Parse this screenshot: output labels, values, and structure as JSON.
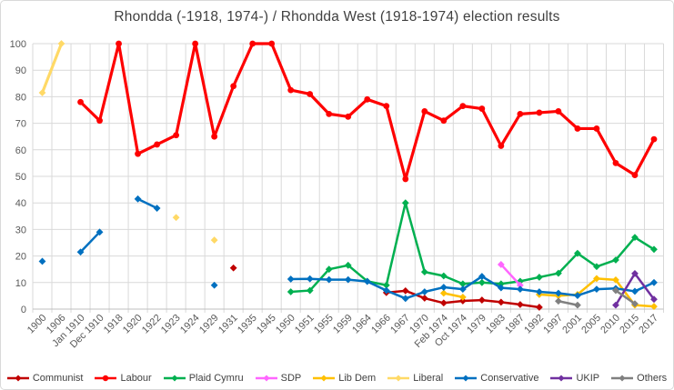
{
  "chart_data": {
    "type": "line",
    "title": "Rhondda (-1918, 1974-) / Rhondda West (1918-1974) election results",
    "xlabel": "",
    "ylabel": "",
    "ylim": [
      0,
      100
    ],
    "yticks": [
      0,
      10,
      20,
      30,
      40,
      50,
      60,
      70,
      80,
      90,
      100
    ],
    "grid": true,
    "legend_position": "bottom",
    "categories": [
      "1900",
      "1906",
      "Jan 1910",
      "Dec 1910",
      "1918",
      "1920",
      "1922",
      "1923",
      "1924",
      "1929",
      "1931",
      "1935",
      "1945",
      "1950",
      "1951",
      "1955",
      "1959",
      "1964",
      "1966",
      "1967",
      "1970",
      "Feb 1974",
      "Oct 1974",
      "1979",
      "1983",
      "1987",
      "1992",
      "1997",
      "2001",
      "2005",
      "2010",
      "2015",
      "2017"
    ],
    "series": [
      {
        "name": "Communist",
        "color": "#c00000",
        "marker": "diamond",
        "values": [
          null,
          null,
          null,
          null,
          null,
          null,
          null,
          null,
          null,
          null,
          15.5,
          null,
          null,
          null,
          null,
          null,
          null,
          null,
          6.2,
          6.9,
          4.1,
          2.3,
          3.1,
          3.4,
          2.6,
          1.7,
          0.7,
          null,
          null,
          null,
          null,
          null,
          null
        ]
      },
      {
        "name": "Labour",
        "color": "#fe0000",
        "marker": "circle",
        "values": [
          null,
          null,
          78,
          71,
          100,
          58.5,
          62,
          65.5,
          100,
          65,
          84,
          100,
          100,
          82.5,
          81,
          73.5,
          72.5,
          79,
          76.5,
          49,
          74.5,
          71,
          76.5,
          75.5,
          61.5,
          73.5,
          74,
          74.5,
          68,
          68,
          55,
          50.5,
          64
        ]
      },
      {
        "name": "Plaid Cymru",
        "color": "#00b050",
        "marker": "diamond",
        "values": [
          null,
          null,
          null,
          null,
          null,
          null,
          null,
          null,
          null,
          null,
          null,
          null,
          null,
          6.5,
          7,
          15,
          16.5,
          10.5,
          9,
          40,
          14,
          12.5,
          9.5,
          10,
          9.5,
          10.5,
          12,
          13.5,
          21,
          16,
          18.5,
          27,
          22.5
        ]
      },
      {
        "name": "SDP",
        "color": "#ff66ff",
        "marker": "diamond",
        "values": [
          null,
          null,
          null,
          null,
          null,
          null,
          null,
          null,
          null,
          null,
          null,
          null,
          null,
          null,
          null,
          null,
          null,
          null,
          null,
          null,
          null,
          null,
          null,
          null,
          16.8,
          9,
          null,
          null,
          null,
          null,
          null,
          null,
          null
        ]
      },
      {
        "name": "Lib Dem",
        "color": "#ffc000",
        "marker": "diamond",
        "values": [
          null,
          null,
          null,
          null,
          null,
          null,
          null,
          null,
          null,
          null,
          null,
          null,
          null,
          null,
          null,
          null,
          null,
          null,
          null,
          null,
          null,
          6,
          4.5,
          null,
          null,
          null,
          5.5,
          5,
          5.5,
          11.5,
          11,
          1.5,
          1
        ]
      },
      {
        "name": "Liberal",
        "color": "#ffd966",
        "marker": "diamond",
        "values": [
          81.5,
          100,
          null,
          null,
          null,
          null,
          null,
          34.5,
          null,
          26,
          null,
          null,
          null,
          null,
          null,
          null,
          null,
          null,
          null,
          null,
          null,
          null,
          null,
          null,
          null,
          null,
          null,
          null,
          null,
          null,
          null,
          null,
          null
        ]
      },
      {
        "name": "Conservative",
        "color": "#0070c0",
        "marker": "diamond",
        "values": [
          18,
          null,
          21.5,
          29,
          null,
          41.5,
          38,
          null,
          null,
          9,
          null,
          null,
          null,
          11.3,
          11.4,
          11.1,
          11.1,
          10.4,
          7,
          4,
          6.5,
          8.2,
          7.5,
          12.3,
          8,
          7.5,
          6.5,
          6,
          5.1,
          7.5,
          7.8,
          6.7,
          10
        ]
      },
      {
        "name": "UKIP",
        "color": "#7030a0",
        "marker": "diamond",
        "values": [
          null,
          null,
          null,
          null,
          null,
          null,
          null,
          null,
          null,
          null,
          null,
          null,
          null,
          null,
          null,
          null,
          null,
          null,
          null,
          null,
          null,
          null,
          null,
          null,
          null,
          null,
          null,
          null,
          null,
          null,
          1.5,
          13.4,
          3.7
        ]
      },
      {
        "name": "Others",
        "color": "#808080",
        "marker": "diamond",
        "values": [
          null,
          null,
          null,
          null,
          null,
          null,
          null,
          null,
          null,
          null,
          null,
          null,
          null,
          null,
          null,
          null,
          null,
          null,
          null,
          null,
          null,
          null,
          null,
          null,
          null,
          null,
          null,
          3,
          1.5,
          null,
          7,
          2,
          null
        ]
      }
    ]
  }
}
